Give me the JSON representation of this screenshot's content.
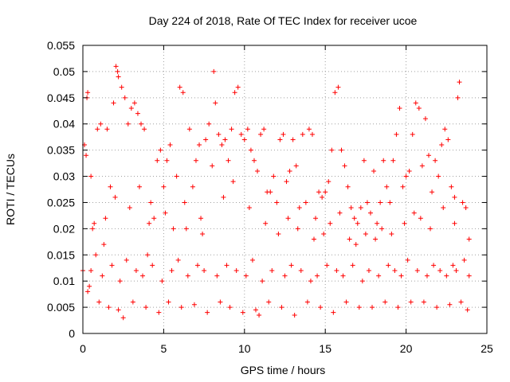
{
  "chart_data": {
    "type": "scatter",
    "title": "Day 224 of 2018, Rate Of TEC Index for receiver ucoe",
    "xlabel": "GPS time / hours",
    "ylabel": "ROTI / TECUs",
    "xlim": [
      0,
      25
    ],
    "ylim": [
      0,
      0.055
    ],
    "xticks": [
      0,
      5,
      10,
      15,
      20,
      25
    ],
    "xtick_labels": [
      "0",
      "5",
      "10",
      "15",
      "20",
      "25"
    ],
    "yticks": [
      0,
      0.005,
      0.01,
      0.015,
      0.02,
      0.025,
      0.03,
      0.035,
      0.04,
      0.045,
      0.05,
      0.055
    ],
    "ytick_labels": [
      "0",
      "0.005",
      "0.01",
      "0.015",
      "0.02",
      "0.025",
      "0.03",
      "0.035",
      "0.04",
      "0.045",
      "0.05",
      "0.055"
    ],
    "grid": true,
    "marker": "+",
    "color": "#ff0000",
    "series": [
      {
        "name": "ROTI",
        "points": [
          [
            0.0,
            0.012
          ],
          [
            0.1,
            0.036
          ],
          [
            0.2,
            0.034
          ],
          [
            0.25,
            0.045
          ],
          [
            0.3,
            0.046
          ],
          [
            0.4,
            0.009
          ],
          [
            0.5,
            0.03
          ],
          [
            0.7,
            0.021
          ],
          [
            0.9,
            0.039
          ],
          [
            1.1,
            0.04
          ],
          [
            1.3,
            0.017
          ],
          [
            1.5,
            0.039
          ],
          [
            1.7,
            0.028
          ],
          [
            1.9,
            0.044
          ],
          [
            2.05,
            0.051
          ],
          [
            2.15,
            0.05
          ],
          [
            2.2,
            0.049
          ],
          [
            2.4,
            0.047
          ],
          [
            2.6,
            0.045
          ],
          [
            2.8,
            0.04
          ],
          [
            3.0,
            0.043
          ],
          [
            3.2,
            0.044
          ],
          [
            3.4,
            0.042
          ],
          [
            3.6,
            0.04
          ],
          [
            3.8,
            0.039
          ],
          [
            4.0,
            0.015
          ],
          [
            4.2,
            0.025
          ],
          [
            4.4,
            0.022
          ],
          [
            4.6,
            0.033
          ],
          [
            4.8,
            0.035
          ],
          [
            5.0,
            0.028
          ],
          [
            5.2,
            0.033
          ],
          [
            5.4,
            0.036
          ],
          [
            5.6,
            0.02
          ],
          [
            5.8,
            0.03
          ],
          [
            6.0,
            0.047
          ],
          [
            6.2,
            0.046
          ],
          [
            6.4,
            0.02
          ],
          [
            6.6,
            0.039
          ],
          [
            6.8,
            0.028
          ],
          [
            7.0,
            0.033
          ],
          [
            7.2,
            0.036
          ],
          [
            7.4,
            0.019
          ],
          [
            7.6,
            0.037
          ],
          [
            7.8,
            0.04
          ],
          [
            8.0,
            0.032
          ],
          [
            8.1,
            0.05
          ],
          [
            8.2,
            0.044
          ],
          [
            8.4,
            0.038
          ],
          [
            8.6,
            0.036
          ],
          [
            8.8,
            0.037
          ],
          [
            9.0,
            0.033
          ],
          [
            9.2,
            0.039
          ],
          [
            9.4,
            0.046
          ],
          [
            9.6,
            0.047
          ],
          [
            9.8,
            0.038
          ],
          [
            10.0,
            0.037
          ],
          [
            10.2,
            0.039
          ],
          [
            10.4,
            0.035
          ],
          [
            10.6,
            0.033
          ],
          [
            10.8,
            0.031
          ],
          [
            11.0,
            0.038
          ],
          [
            11.2,
            0.039
          ],
          [
            11.4,
            0.027
          ],
          [
            11.6,
            0.027
          ],
          [
            11.8,
            0.03
          ],
          [
            12.0,
            0.025
          ],
          [
            12.2,
            0.037
          ],
          [
            12.4,
            0.038
          ],
          [
            12.6,
            0.029
          ],
          [
            12.8,
            0.031
          ],
          [
            13.0,
            0.037
          ],
          [
            13.2,
            0.032
          ],
          [
            13.4,
            0.024
          ],
          [
            13.6,
            0.038
          ],
          [
            13.8,
            0.025
          ],
          [
            14.0,
            0.039
          ],
          [
            14.2,
            0.038
          ],
          [
            14.4,
            0.022
          ],
          [
            14.6,
            0.027
          ],
          [
            14.8,
            0.026
          ],
          [
            15.0,
            0.027
          ],
          [
            15.2,
            0.029
          ],
          [
            15.4,
            0.035
          ],
          [
            15.6,
            0.046
          ],
          [
            15.8,
            0.047
          ],
          [
            16.0,
            0.035
          ],
          [
            16.2,
            0.032
          ],
          [
            16.4,
            0.028
          ],
          [
            16.6,
            0.024
          ],
          [
            16.8,
            0.022
          ],
          [
            17.0,
            0.021
          ],
          [
            17.2,
            0.024
          ],
          [
            17.4,
            0.033
          ],
          [
            17.6,
            0.025
          ],
          [
            17.8,
            0.023
          ],
          [
            18.0,
            0.031
          ],
          [
            18.2,
            0.021
          ],
          [
            18.4,
            0.025
          ],
          [
            18.6,
            0.033
          ],
          [
            18.8,
            0.028
          ],
          [
            19.0,
            0.025
          ],
          [
            19.2,
            0.033
          ],
          [
            19.4,
            0.038
          ],
          [
            19.6,
            0.043
          ],
          [
            19.8,
            0.028
          ],
          [
            20.0,
            0.03
          ],
          [
            20.2,
            0.031
          ],
          [
            20.4,
            0.038
          ],
          [
            20.6,
            0.044
          ],
          [
            20.8,
            0.043
          ],
          [
            21.0,
            0.032
          ],
          [
            21.2,
            0.041
          ],
          [
            21.4,
            0.034
          ],
          [
            21.6,
            0.027
          ],
          [
            21.8,
            0.033
          ],
          [
            22.0,
            0.03
          ],
          [
            22.2,
            0.036
          ],
          [
            22.4,
            0.039
          ],
          [
            22.6,
            0.037
          ],
          [
            22.8,
            0.028
          ],
          [
            23.0,
            0.026
          ],
          [
            23.2,
            0.045
          ],
          [
            23.3,
            0.048
          ],
          [
            23.5,
            0.025
          ],
          [
            23.7,
            0.024
          ],
          [
            23.9,
            0.018
          ],
          [
            0.3,
            0.008
          ],
          [
            1.0,
            0.006
          ],
          [
            1.6,
            0.005
          ],
          [
            2.2,
            0.0045
          ],
          [
            2.5,
            0.003
          ],
          [
            3.1,
            0.006
          ],
          [
            3.9,
            0.005
          ],
          [
            4.7,
            0.004
          ],
          [
            5.3,
            0.006
          ],
          [
            6.1,
            0.005
          ],
          [
            6.9,
            0.0055
          ],
          [
            7.7,
            0.004
          ],
          [
            8.5,
            0.006
          ],
          [
            9.1,
            0.005
          ],
          [
            9.9,
            0.004
          ],
          [
            10.7,
            0.0045
          ],
          [
            10.9,
            0.0035
          ],
          [
            11.5,
            0.006
          ],
          [
            12.3,
            0.005
          ],
          [
            13.1,
            0.0035
          ],
          [
            13.9,
            0.006
          ],
          [
            14.7,
            0.005
          ],
          [
            15.5,
            0.004
          ],
          [
            16.3,
            0.006
          ],
          [
            17.1,
            0.005
          ],
          [
            17.9,
            0.005
          ],
          [
            18.7,
            0.006
          ],
          [
            19.5,
            0.005
          ],
          [
            20.3,
            0.006
          ],
          [
            21.1,
            0.006
          ],
          [
            21.9,
            0.005
          ],
          [
            22.7,
            0.0055
          ],
          [
            23.4,
            0.006
          ],
          [
            23.8,
            0.0045
          ],
          [
            0.5,
            0.012
          ],
          [
            0.8,
            0.015
          ],
          [
            1.2,
            0.011
          ],
          [
            1.8,
            0.013
          ],
          [
            2.3,
            0.01
          ],
          [
            2.7,
            0.014
          ],
          [
            3.3,
            0.012
          ],
          [
            3.7,
            0.011
          ],
          [
            4.3,
            0.013
          ],
          [
            4.9,
            0.01
          ],
          [
            5.5,
            0.012
          ],
          [
            5.9,
            0.014
          ],
          [
            6.5,
            0.011
          ],
          [
            7.1,
            0.013
          ],
          [
            7.5,
            0.012
          ],
          [
            8.3,
            0.011
          ],
          [
            8.9,
            0.013
          ],
          [
            9.5,
            0.012
          ],
          [
            10.1,
            0.011
          ],
          [
            10.5,
            0.014
          ],
          [
            11.1,
            0.01
          ],
          [
            11.7,
            0.012
          ],
          [
            12.5,
            0.011
          ],
          [
            12.9,
            0.013
          ],
          [
            13.5,
            0.012
          ],
          [
            14.1,
            0.01
          ],
          [
            14.5,
            0.011
          ],
          [
            15.1,
            0.013
          ],
          [
            15.7,
            0.012
          ],
          [
            16.1,
            0.011
          ],
          [
            16.7,
            0.013
          ],
          [
            17.3,
            0.01
          ],
          [
            17.7,
            0.012
          ],
          [
            18.3,
            0.011
          ],
          [
            18.9,
            0.013
          ],
          [
            19.3,
            0.012
          ],
          [
            19.7,
            0.011
          ],
          [
            20.1,
            0.014
          ],
          [
            20.7,
            0.012
          ],
          [
            21.3,
            0.011
          ],
          [
            21.7,
            0.013
          ],
          [
            22.1,
            0.012
          ],
          [
            22.5,
            0.011
          ],
          [
            22.9,
            0.013
          ],
          [
            23.1,
            0.012
          ],
          [
            23.6,
            0.014
          ],
          [
            23.9,
            0.011
          ],
          [
            0.6,
            0.02
          ],
          [
            1.4,
            0.022
          ],
          [
            2.0,
            0.026
          ],
          [
            2.9,
            0.024
          ],
          [
            3.5,
            0.028
          ],
          [
            4.1,
            0.021
          ],
          [
            5.1,
            0.023
          ],
          [
            6.3,
            0.025
          ],
          [
            7.3,
            0.022
          ],
          [
            8.7,
            0.026
          ],
          [
            9.3,
            0.029
          ],
          [
            10.3,
            0.024
          ],
          [
            11.3,
            0.021
          ],
          [
            12.1,
            0.019
          ],
          [
            12.7,
            0.022
          ],
          [
            13.3,
            0.02
          ],
          [
            14.3,
            0.018
          ],
          [
            14.9,
            0.019
          ],
          [
            15.3,
            0.021
          ],
          [
            15.9,
            0.023
          ],
          [
            16.5,
            0.018
          ],
          [
            16.9,
            0.017
          ],
          [
            17.5,
            0.019
          ],
          [
            18.1,
            0.018
          ],
          [
            18.5,
            0.02
          ],
          [
            19.1,
            0.019
          ],
          [
            19.9,
            0.021
          ],
          [
            20.5,
            0.023
          ],
          [
            20.9,
            0.022
          ],
          [
            21.5,
            0.02
          ],
          [
            22.3,
            0.024
          ],
          [
            23.0,
            0.021
          ]
        ]
      }
    ]
  }
}
